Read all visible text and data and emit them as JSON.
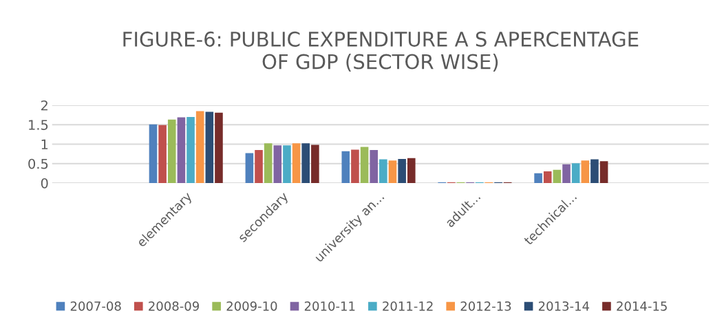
{
  "chart_data": {
    "type": "bar",
    "title": "FIGURE-6: PUBLIC EXPENDITURE A S APERCENTAGE\nOF GDP (SECTOR WISE)",
    "categories": [
      "elementary",
      "secondary",
      "university an...",
      "adult...",
      "technical..."
    ],
    "series": [
      {
        "name": "2007-08",
        "color": "#4f81bd",
        "values": [
          1.51,
          0.77,
          0.82,
          0.02,
          0.25
        ]
      },
      {
        "name": "2008-09",
        "color": "#c0504d",
        "values": [
          1.49,
          0.85,
          0.86,
          0.02,
          0.3
        ]
      },
      {
        "name": "2009-10",
        "color": "#9bbb59",
        "values": [
          1.63,
          1.02,
          0.93,
          0.02,
          0.34
        ]
      },
      {
        "name": "2010-11",
        "color": "#8064a2",
        "values": [
          1.69,
          0.97,
          0.85,
          0.02,
          0.48
        ]
      },
      {
        "name": "2011-12",
        "color": "#4bacc6",
        "values": [
          1.7,
          0.97,
          0.61,
          0.02,
          0.51
        ]
      },
      {
        "name": "2012-13",
        "color": "#f79646",
        "values": [
          1.85,
          1.02,
          0.58,
          0.02,
          0.58
        ]
      },
      {
        "name": "2013-14",
        "color": "#2c4d75",
        "values": [
          1.83,
          1.02,
          0.62,
          0.02,
          0.61
        ]
      },
      {
        "name": "2014-15",
        "color": "#772c2a",
        "values": [
          1.81,
          0.98,
          0.64,
          0.02,
          0.56
        ]
      }
    ],
    "ylim": [
      0,
      2
    ],
    "yticks": [
      0,
      0.5,
      1,
      1.5,
      2
    ],
    "grid": "y",
    "legend": "bottom"
  }
}
